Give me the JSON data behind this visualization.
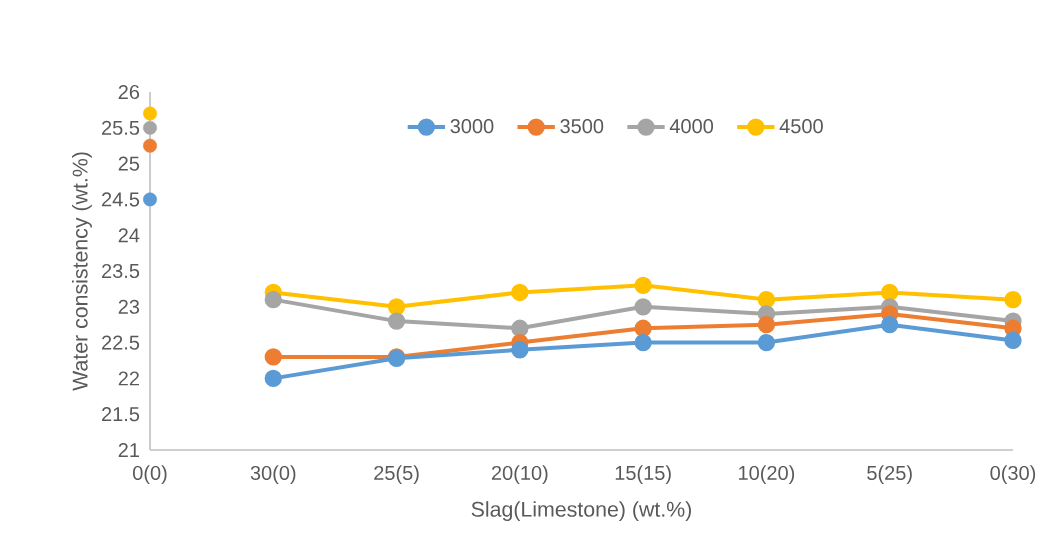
{
  "chart_data": {
    "type": "line",
    "xlabel": "Slag(Limestone) (wt.%)",
    "ylabel": "Water consistency (wt.%)",
    "categories": [
      "0(0)",
      "30(0)",
      "25(5)",
      "20(10)",
      "15(15)",
      "10(20)",
      "5(25)",
      "0(30)"
    ],
    "ylim": [
      21,
      26
    ],
    "yticks": [
      21,
      21.5,
      22,
      22.5,
      23,
      23.5,
      24,
      24.5,
      25,
      25.5,
      26
    ],
    "grid": false,
    "legend": "top",
    "marker": "circle",
    "line_style": "solid",
    "series": [
      {
        "name": "3000",
        "color": "#5b9bd5",
        "values": [
          null,
          22.0,
          22.28,
          22.4,
          22.5,
          22.5,
          22.75,
          22.53
        ]
      },
      {
        "name": "3500",
        "color": "#ed7d31",
        "values": [
          null,
          22.3,
          22.3,
          22.5,
          22.7,
          22.75,
          22.9,
          22.7
        ]
      },
      {
        "name": "4000",
        "color": "#a5a5a5",
        "values": [
          null,
          23.1,
          22.8,
          22.7,
          23.0,
          22.9,
          23.0,
          22.8
        ]
      },
      {
        "name": "4500",
        "color": "#ffc000",
        "values": [
          null,
          23.2,
          23.0,
          23.2,
          23.3,
          23.1,
          23.2,
          23.1
        ]
      },
      {
        "type": "scatter",
        "color": "#5b9bd5",
        "values": [
          24.5,
          null,
          null,
          null,
          null,
          null,
          null,
          null
        ]
      },
      {
        "type": "scatter",
        "color": "#ed7d31",
        "values": [
          25.25,
          null,
          null,
          null,
          null,
          null,
          null,
          null
        ]
      },
      {
        "type": "scatter",
        "color": "#a5a5a5",
        "values": [
          25.5,
          null,
          null,
          null,
          null,
          null,
          null,
          null
        ]
      },
      {
        "type": "scatter",
        "color": "#ffc000",
        "values": [
          25.7,
          null,
          null,
          null,
          null,
          null,
          null,
          null
        ]
      }
    ]
  }
}
